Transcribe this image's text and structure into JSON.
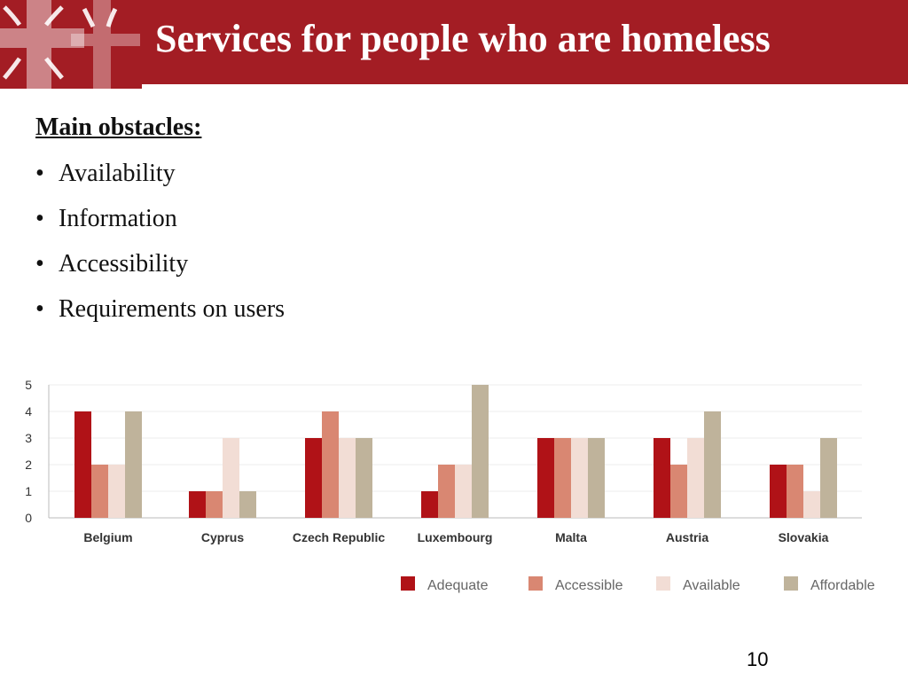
{
  "header": {
    "title": "Services for people who are homeless",
    "logo_icon": "cross-logo-icon",
    "background_color": "#a31d24"
  },
  "content": {
    "subtitle": "Main obstacles:",
    "bullets": [
      "Availability",
      "Information",
      "Accessibility",
      "Requirements on users"
    ]
  },
  "chart_data": {
    "type": "bar",
    "categories": [
      "Belgium",
      "Cyprus",
      "Czech Republic",
      "Luxembourg",
      "Malta",
      "Austria",
      "Slovakia"
    ],
    "series": [
      {
        "name": "Adequate",
        "color": "#b01217",
        "values": [
          4,
          1,
          3,
          1,
          3,
          3,
          2
        ]
      },
      {
        "name": "Accessible",
        "color": "#d98772",
        "values": [
          2,
          1,
          4,
          2,
          3,
          2,
          2
        ]
      },
      {
        "name": "Available",
        "color": "#f2ddd5",
        "values": [
          2,
          3,
          3,
          2,
          3,
          3,
          1
        ]
      },
      {
        "name": "Affordable",
        "color": "#bfb39b",
        "values": [
          4,
          1,
          3,
          5,
          3,
          4,
          3
        ]
      }
    ],
    "yticks": [
      0,
      1,
      2,
      3,
      4,
      5
    ],
    "ylim": [
      0,
      5
    ],
    "grid": true,
    "legend": "bottom-right",
    "title": "",
    "xlabel": "",
    "ylabel": ""
  },
  "footer": {
    "page_number": "10"
  }
}
